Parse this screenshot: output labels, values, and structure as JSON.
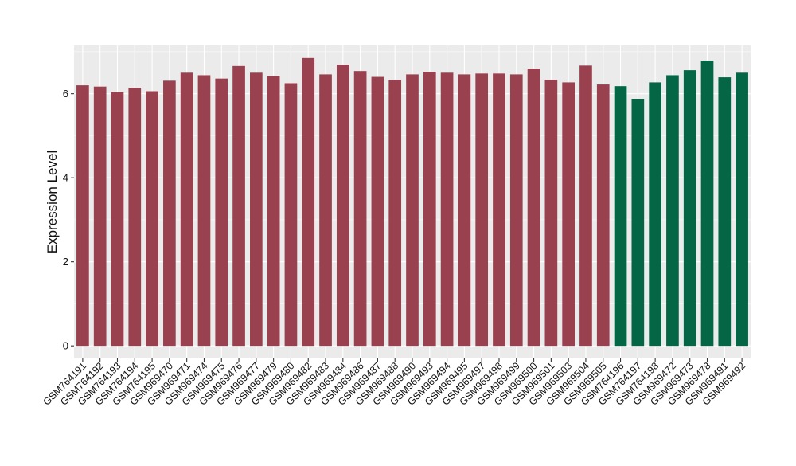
{
  "chart_data": {
    "type": "bar",
    "title": "",
    "xlabel": "",
    "ylabel": "Expression Level",
    "ylim": [
      -0.3,
      7.15
    ],
    "yticks": [
      0,
      2,
      4,
      6
    ],
    "grid": true,
    "legend": "none",
    "colors": {
      "group1": "#9a4150",
      "group2": "#056645",
      "panel": "#ebebeb",
      "grid": "#ffffff",
      "tick": "#333333",
      "axis_text": "#111111"
    },
    "categories": [
      "GSM764191",
      "GSM764192",
      "GSM764193",
      "GSM764194",
      "GSM764195",
      "GSM969470",
      "GSM969471",
      "GSM969474",
      "GSM969475",
      "GSM969476",
      "GSM969477",
      "GSM969479",
      "GSM969480",
      "GSM969482",
      "GSM969483",
      "GSM969484",
      "GSM969486",
      "GSM969487",
      "GSM969488",
      "GSM969490",
      "GSM969493",
      "GSM969494",
      "GSM969495",
      "GSM969497",
      "GSM969498",
      "GSM969499",
      "GSM969500",
      "GSM969501",
      "GSM969503",
      "GSM969504",
      "GSM969505",
      "GSM764196",
      "GSM764197",
      "GSM764198",
      "GSM969472",
      "GSM969473",
      "GSM969478",
      "GSM969491",
      "GSM969492"
    ],
    "values": [
      6.2,
      6.17,
      6.04,
      6.14,
      6.06,
      6.31,
      6.5,
      6.44,
      6.36,
      6.66,
      6.5,
      6.42,
      6.25,
      6.85,
      6.46,
      6.69,
      6.54,
      6.4,
      6.33,
      6.46,
      6.52,
      6.5,
      6.46,
      6.48,
      6.48,
      6.46,
      6.6,
      6.33,
      6.27,
      6.67,
      6.22,
      6.18,
      5.88,
      6.27,
      6.44,
      6.56,
      6.79,
      6.39,
      6.5
    ],
    "groups": [
      1,
      1,
      1,
      1,
      1,
      1,
      1,
      1,
      1,
      1,
      1,
      1,
      1,
      1,
      1,
      1,
      1,
      1,
      1,
      1,
      1,
      1,
      1,
      1,
      1,
      1,
      1,
      1,
      1,
      1,
      1,
      2,
      2,
      2,
      2,
      2,
      2,
      2,
      2
    ]
  }
}
